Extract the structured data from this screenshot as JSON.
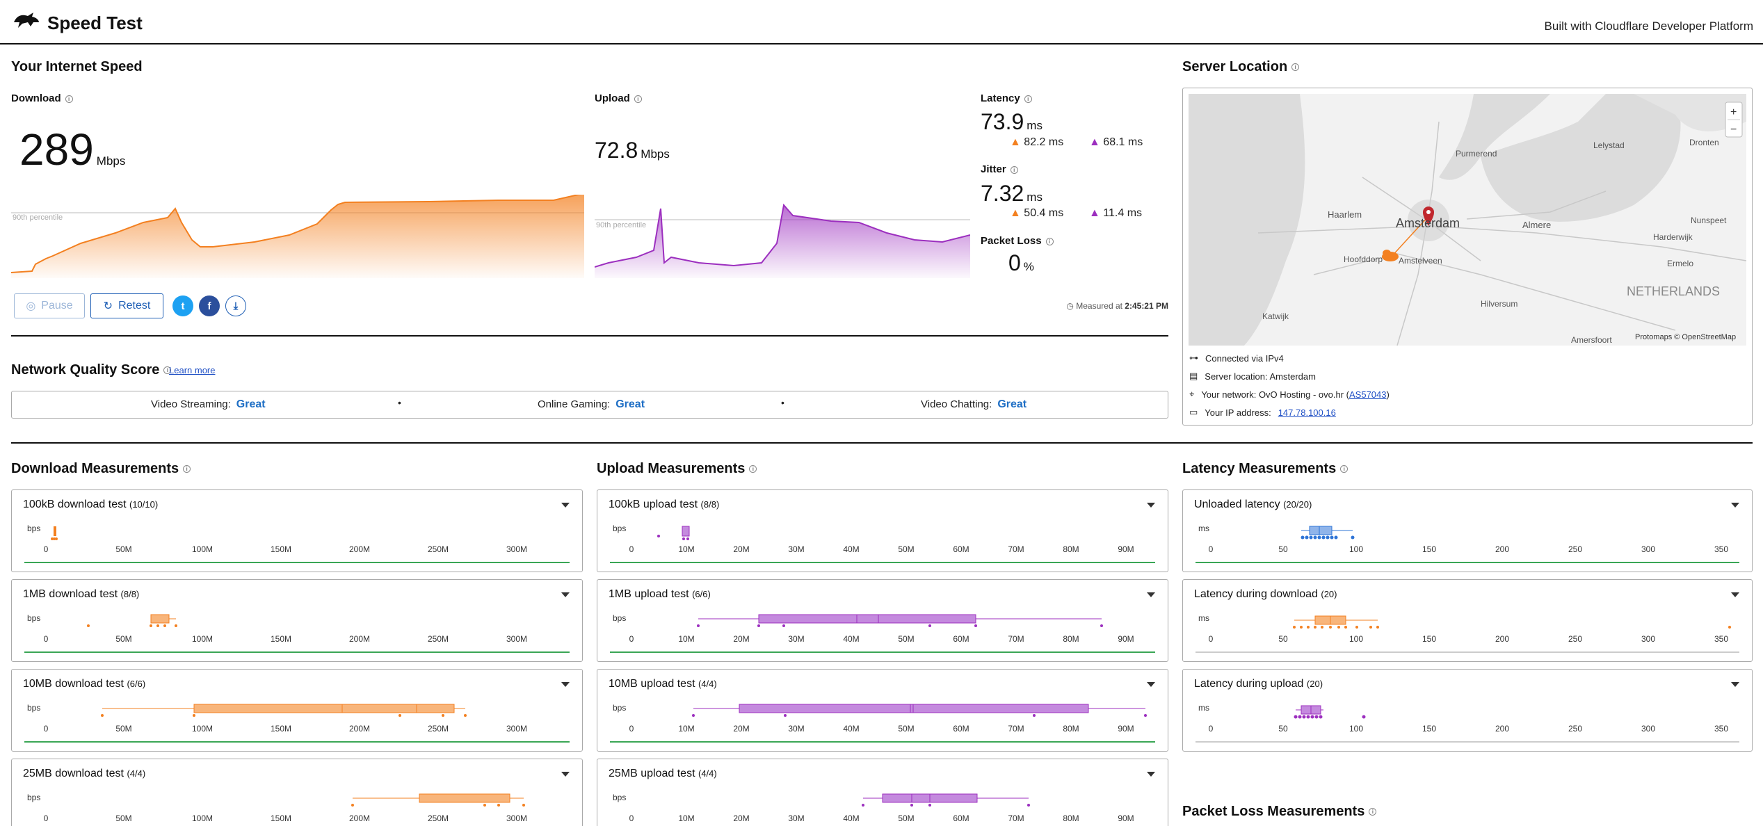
{
  "header": {
    "title": "Speed Test",
    "built_with": "Built with Cloudflare Developer Platform"
  },
  "speed": {
    "section_title": "Your Internet Speed",
    "download_label": "Download",
    "download_value": "289",
    "download_unit": "Mbps",
    "upload_label": "Upload",
    "upload_value": "72.8",
    "upload_unit": "Mbps",
    "percentile_label": "90th percentile",
    "latency_label": "Latency",
    "latency_value": "73.9",
    "latency_unit": "ms",
    "latency_down": "82.2",
    "latency_up": "68.1",
    "ms": "ms",
    "jitter_label": "Jitter",
    "jitter_value": "7.32",
    "jitter_unit": "ms",
    "jitter_down": "50.4",
    "jitter_up": "11.4",
    "packet_loss_label": "Packet Loss",
    "packet_loss_value": "0",
    "packet_loss_unit": "%",
    "measured_prefix": "Measured at",
    "measured_time": "2:45:21 PM"
  },
  "buttons": {
    "pause": "Pause",
    "retest": "Retest"
  },
  "colors": {
    "download": "#f38020",
    "upload": "#9c2fbf",
    "latency": "#2e74d6",
    "link": "#1f6fc5",
    "good": "#3aa655"
  },
  "server": {
    "title": "Server Location",
    "map_labels": [
      "Purmerend",
      "Lelystad",
      "Dronten",
      "Haarlem",
      "Amsterdam",
      "Almere",
      "Nunspeet",
      "Harderwijk",
      "Hoofddorp",
      "Amstelveen",
      "Ermelo",
      "NETHERLANDS",
      "Katwijk",
      "Hilversum",
      "Amersfoort"
    ],
    "attribution": "Protomaps © OpenStreetMap",
    "zoom_in": "+",
    "zoom_out": "−",
    "connected": "Connected via IPv4",
    "server_location": "Server location: Amsterdam",
    "network_prefix": "Your network: OvO Hosting - ovo.hr (",
    "asn": "AS57043",
    "network_suffix": ")",
    "ip_prefix": "Your IP address:",
    "ip": "147.78.100.16"
  },
  "nqs": {
    "title": "Network Quality Score",
    "learn_more": "Learn more",
    "items": [
      {
        "k": "Video Streaming:",
        "v": "Great"
      },
      {
        "k": "Online Gaming:",
        "v": "Great"
      },
      {
        "k": "Video Chatting:",
        "v": "Great"
      }
    ],
    "sep": "•"
  },
  "download_meas": {
    "title": "Download Measurements",
    "unit": "bps",
    "ticks": [
      "0",
      "50M",
      "100M",
      "150M",
      "200M",
      "250M",
      "300M"
    ],
    "cards": [
      {
        "name": "100kB download test",
        "count": "(10/10)"
      },
      {
        "name": "1MB download test",
        "count": "(8/8)"
      },
      {
        "name": "10MB download test",
        "count": "(6/6)"
      },
      {
        "name": "25MB download test",
        "count": "(4/4)"
      }
    ]
  },
  "upload_meas": {
    "title": "Upload Measurements",
    "unit": "bps",
    "ticks": [
      "0",
      "10M",
      "20M",
      "30M",
      "40M",
      "50M",
      "60M",
      "70M",
      "80M",
      "90M"
    ],
    "cards": [
      {
        "name": "100kB upload test",
        "count": "(8/8)"
      },
      {
        "name": "1MB upload test",
        "count": "(6/6)"
      },
      {
        "name": "10MB upload test",
        "count": "(4/4)"
      },
      {
        "name": "25MB upload test",
        "count": "(4/4)"
      }
    ]
  },
  "latency_meas": {
    "title": "Latency Measurements",
    "unit": "ms",
    "ticks": [
      "0",
      "50",
      "100",
      "150",
      "200",
      "250",
      "300",
      "350"
    ],
    "cards": [
      {
        "name": "Unloaded latency",
        "count": "(20/20)"
      },
      {
        "name": "Latency during download",
        "count": "(20)"
      },
      {
        "name": "Latency during upload",
        "count": "(20)"
      }
    ]
  },
  "packet_loss_meas": {
    "title": "Packet Loss Measurements"
  }
}
